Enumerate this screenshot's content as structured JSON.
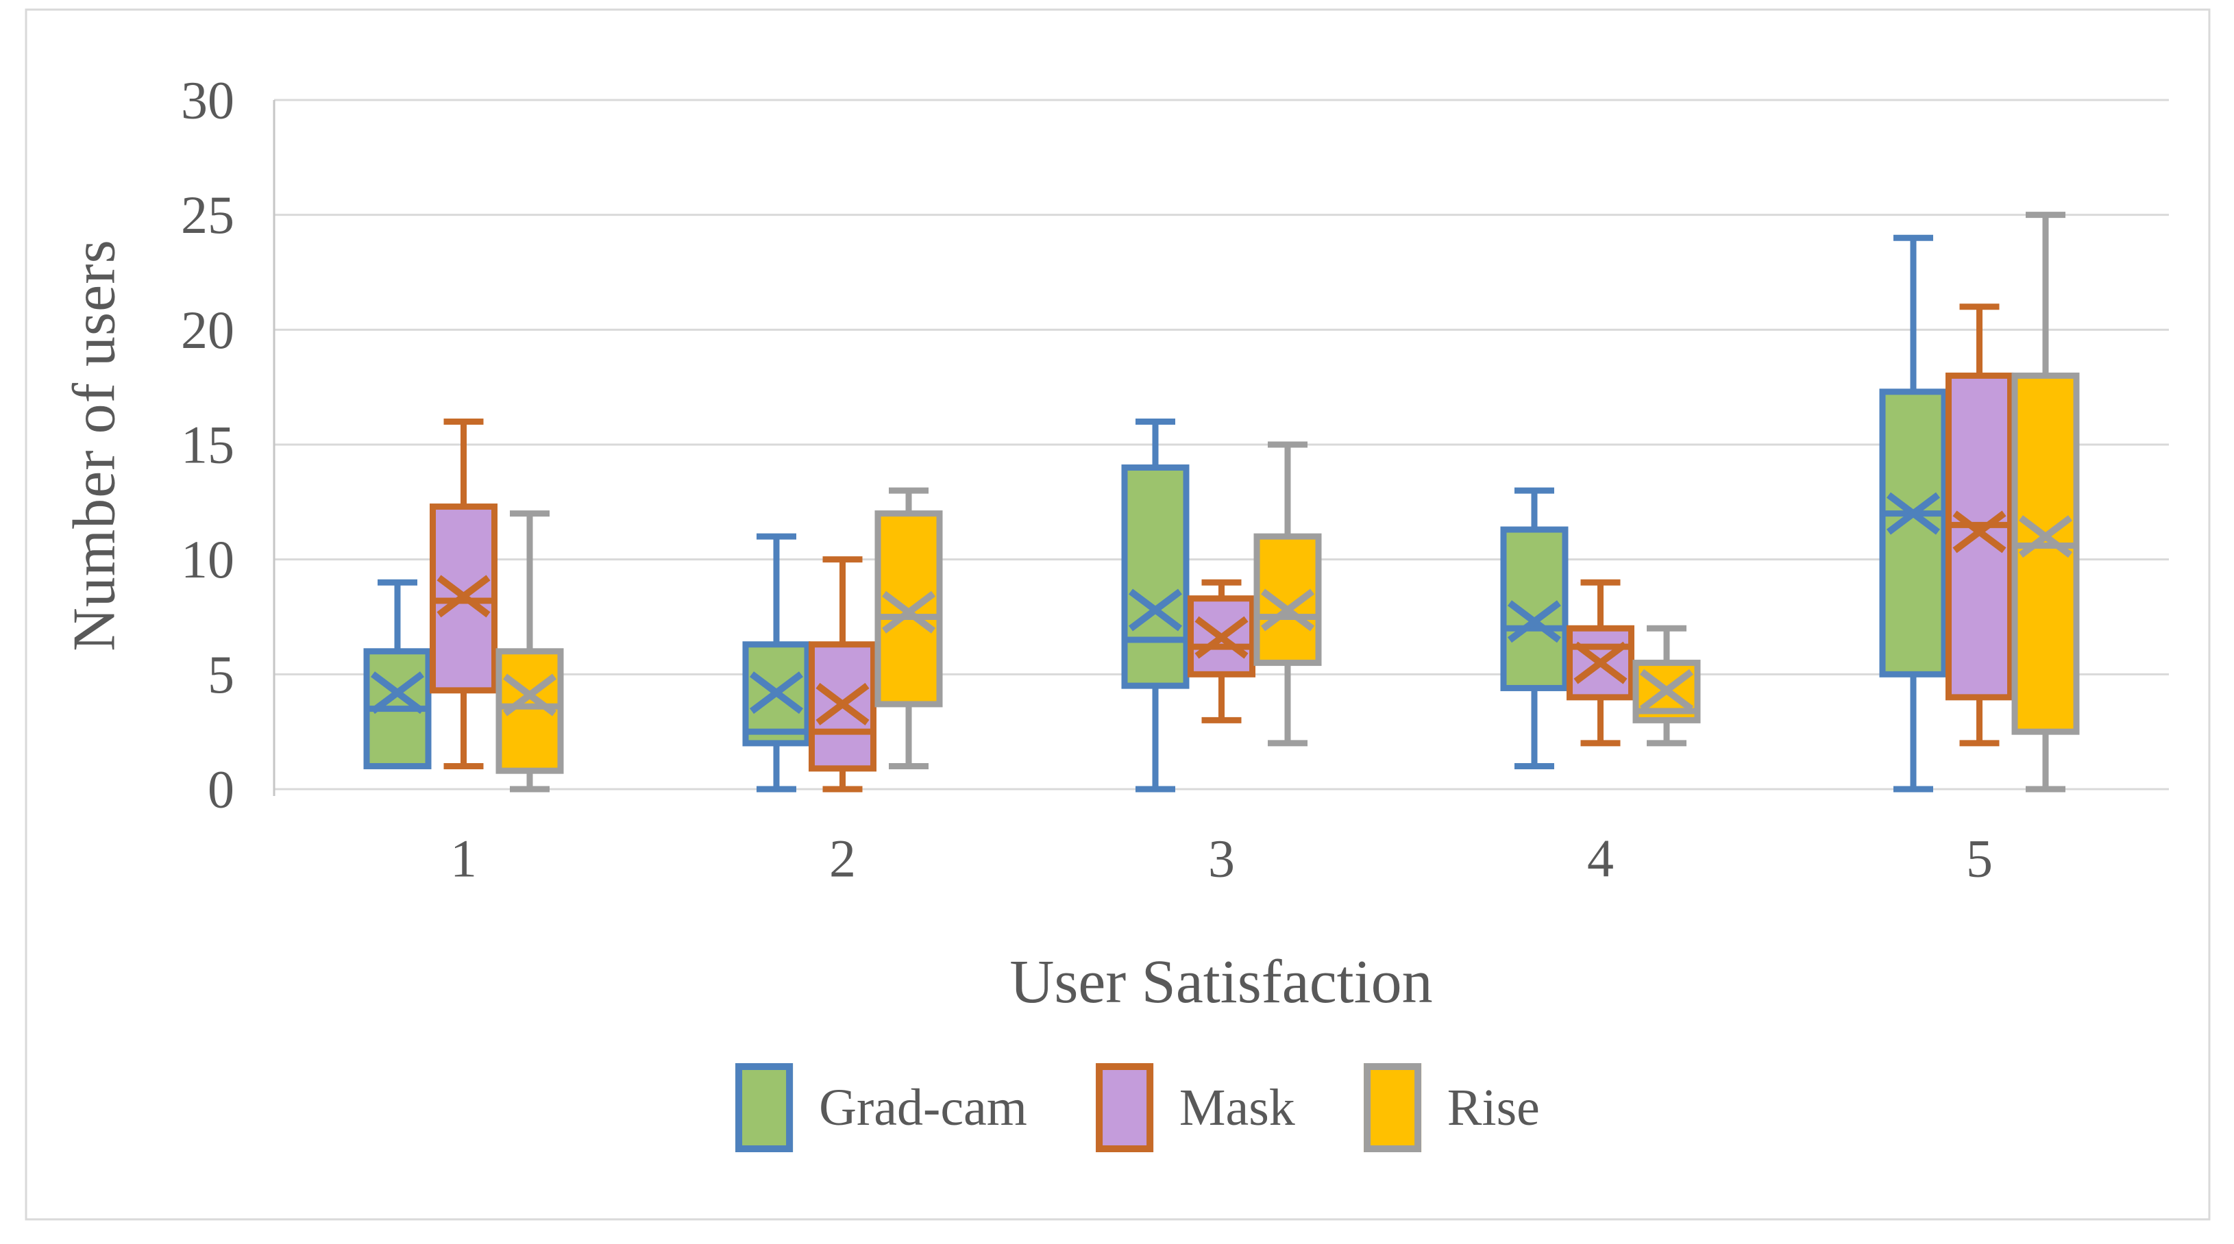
{
  "chart_data": {
    "type": "boxplot",
    "title": "",
    "xlabel": "User Satisfaction",
    "ylabel": "Number of users",
    "ylim": [
      0,
      30
    ],
    "yticks": [
      0,
      5,
      10,
      15,
      20,
      25,
      30
    ],
    "categories": [
      "1",
      "2",
      "3",
      "4",
      "5"
    ],
    "grid": "horizontal",
    "legend_position": "bottom",
    "style": {
      "grid_color": "#D9D9D9",
      "axis_color": "#C6C6C6",
      "panel_border_color": "#D9D9D9",
      "text_color": "#595959",
      "background": "#FFFFFF"
    },
    "series": [
      {
        "name": "Grad-cam",
        "fill": "#9CC36D",
        "stroke": "#4E81BD",
        "boxes": [
          {
            "min": 1,
            "q1": 1,
            "median": 3.5,
            "mean": 4.2,
            "q3": 6,
            "max": 9
          },
          {
            "min": 0,
            "q1": 2,
            "median": 2.5,
            "mean": 4.2,
            "q3": 6.3,
            "max": 11
          },
          {
            "min": 0,
            "q1": 4.5,
            "median": 6.5,
            "mean": 7.8,
            "q3": 14,
            "max": 16
          },
          {
            "min": 1,
            "q1": 4.4,
            "median": 7,
            "mean": 7.3,
            "q3": 11.3,
            "max": 13
          },
          {
            "min": 0,
            "q1": 5,
            "median": 12,
            "mean": 12,
            "q3": 17.3,
            "max": 24
          }
        ]
      },
      {
        "name": "Mask",
        "fill": "#C49CDB",
        "stroke": "#C66A28",
        "boxes": [
          {
            "min": 1,
            "q1": 4.3,
            "median": 8.2,
            "mean": 8.4,
            "q3": 12.3,
            "max": 16
          },
          {
            "min": 0,
            "q1": 0.9,
            "median": 2.5,
            "mean": 3.7,
            "q3": 6.3,
            "max": 10
          },
          {
            "min": 3,
            "q1": 5,
            "median": 6.2,
            "mean": 6.6,
            "q3": 8.3,
            "max": 9
          },
          {
            "min": 2,
            "q1": 4,
            "median": 6.2,
            "mean": 5.5,
            "q3": 7,
            "max": 9
          },
          {
            "min": 2,
            "q1": 4,
            "median": 11.5,
            "mean": 11.2,
            "q3": 18,
            "max": 21
          }
        ]
      },
      {
        "name": "Rise",
        "fill": "#FFC000",
        "stroke": "#9E9E9E",
        "boxes": [
          {
            "min": 0,
            "q1": 0.8,
            "median": 3.6,
            "mean": 4.1,
            "q3": 6,
            "max": 12
          },
          {
            "min": 1,
            "q1": 3.7,
            "median": 7.5,
            "mean": 7.7,
            "q3": 12,
            "max": 13
          },
          {
            "min": 2,
            "q1": 5.5,
            "median": 7.5,
            "mean": 7.8,
            "q3": 11,
            "max": 15
          },
          {
            "min": 2,
            "q1": 3,
            "median": 3.4,
            "mean": 4.3,
            "q3": 5.5,
            "max": 7
          },
          {
            "min": 0,
            "q1": 2.5,
            "median": 10.6,
            "mean": 11,
            "q3": 18,
            "max": 25
          }
        ]
      }
    ]
  }
}
